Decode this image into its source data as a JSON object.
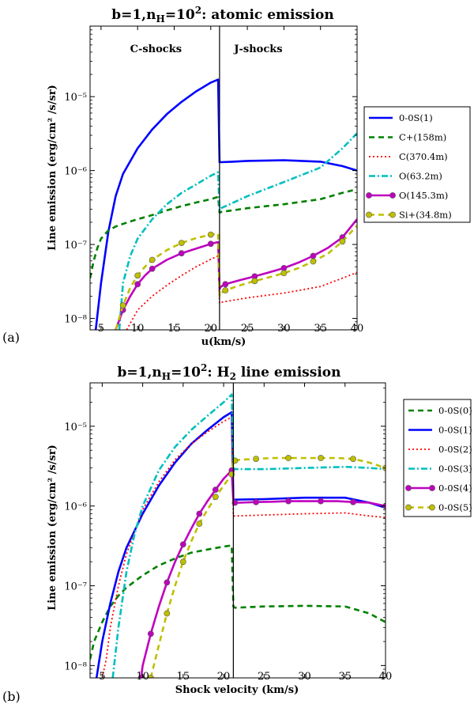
{
  "chart_data": [
    {
      "type": "line",
      "panel_label": "(a)",
      "title_prefix": "b=1,n",
      "title_sub": "H",
      "title_eq": "=10",
      "title_sup": "2",
      "title_suffix": ": atomic emission",
      "xlabel": "u(km/s)",
      "ylabel": "Line emission (erg/cm² /s/sr)",
      "xlim": [
        3.5,
        40
      ],
      "ylim": [
        7e-09,
        9e-05
      ],
      "yscale": "log",
      "x_ticks": [
        5,
        10,
        15,
        20,
        25,
        30,
        35,
        40
      ],
      "x_tick_labels": [
        "5",
        "10",
        "15",
        "20",
        "25",
        "30",
        "35",
        "40"
      ],
      "y_ticks": [
        1e-08,
        1e-07,
        1e-06,
        1e-05
      ],
      "y_tick_labels": [
        "10⁻⁸",
        "10⁻⁷",
        "10⁻⁶",
        "10⁻⁵"
      ],
      "divider_x": 21.2,
      "annotations": [
        {
          "text": "C-shocks",
          "x": 12.5,
          "y": 4e-05
        },
        {
          "text": "J-shocks",
          "x": 26.5,
          "y": 4e-05
        }
      ],
      "legend_loc": "right",
      "series": [
        {
          "name": "0-0S(1)",
          "color": "#0000ff",
          "dash": "solid",
          "marker": false,
          "width": 2.6,
          "x": [
            4.0,
            5,
            6,
            7,
            8,
            10,
            12,
            14,
            16,
            18,
            20,
            21.0,
            21.2,
            21.4,
            23,
            25,
            30,
            35,
            38,
            40
          ],
          "y": [
            4e-09,
            3e-08,
            1.5e-07,
            4.5e-07,
            9e-07,
            2e-06,
            3.6e-06,
            5.8e-06,
            8.5e-06,
            1.18e-05,
            1.55e-05,
            1.7e-05,
            1.3e-06,
            1.3e-06,
            1.32e-06,
            1.35e-06,
            1.38e-06,
            1.32e-06,
            1.15e-06,
            1e-06
          ]
        },
        {
          "name": "C+(158m)",
          "color": "#008000",
          "dash": "7,5",
          "marker": false,
          "width": 2.6,
          "x": [
            3.5,
            4.0,
            4.5,
            5,
            6,
            7,
            8,
            10,
            12,
            14,
            16,
            18,
            20,
            21.0,
            21.2,
            21.4,
            25,
            30,
            35,
            38,
            40
          ],
          "y": [
            3.5e-08,
            6e-08,
            9e-08,
            1.2e-07,
            1.55e-07,
            1.75e-07,
            1.9e-07,
            2.2e-07,
            2.5e-07,
            2.9e-07,
            3.3e-07,
            3.7e-07,
            4.1e-07,
            4.4e-07,
            2.7e-07,
            2.75e-07,
            3.1e-07,
            3.5e-07,
            4.1e-07,
            5e-07,
            5.6e-07
          ]
        },
        {
          "name": "C(370.4m)",
          "color": "#ff0000",
          "dash": "2,3",
          "marker": false,
          "width": 1.8,
          "x": [
            8.5,
            10,
            12,
            14,
            16,
            18,
            20,
            21.0,
            21.2,
            21.4,
            25,
            30,
            35,
            38,
            40
          ],
          "y": [
            7e-09,
            1.3e-08,
            2e-08,
            2.8e-08,
            3.8e-08,
            5e-08,
            6.3e-08,
            7e-08,
            1.6e-08,
            1.65e-08,
            1.9e-08,
            2.2e-08,
            2.7e-08,
            3.5e-08,
            4.2e-08
          ]
        },
        {
          "name": "O(63.2m)",
          "color": "#00bfbf",
          "dash": "8,3,2,3",
          "marker": false,
          "width": 2.6,
          "x": [
            7.5,
            8,
            9,
            10,
            12,
            14,
            16,
            18,
            20,
            21.0,
            21.2,
            21.4,
            25,
            30,
            35,
            38,
            40
          ],
          "y": [
            7e-09,
            3e-08,
            7e-08,
            1.2e-07,
            2.2e-07,
            3.5e-07,
            5e-07,
            6.5e-07,
            8.5e-07,
            9.5e-07,
            2.9e-07,
            3.1e-07,
            4.5e-07,
            7e-07,
            1.1e-06,
            2e-06,
            3.2e-06
          ]
        },
        {
          "name": "O(145.3m)",
          "color": "#bf00bf",
          "dash": "solid",
          "marker": true,
          "width": 2.6,
          "x": [
            6.5,
            7,
            8,
            9,
            10,
            11,
            12,
            14,
            16,
            18,
            20,
            21.0,
            21.2,
            21.4,
            22,
            24,
            26,
            28,
            30,
            32,
            34,
            36,
            38,
            40
          ],
          "y": [
            4e-09,
            7e-09,
            1.3e-08,
            2e-08,
            2.9e-08,
            3.8e-08,
            4.7e-08,
            6.2e-08,
            7.6e-08,
            8.8e-08,
            1.02e-07,
            1.08e-07,
            2.5e-08,
            2.7e-08,
            2.9e-08,
            3.3e-08,
            3.7e-08,
            4.2e-08,
            4.8e-08,
            5.7e-08,
            7e-08,
            9e-08,
            1.25e-07,
            2.2e-07
          ]
        },
        {
          "name": "Si+(34.8m)",
          "color": "#bfbf00",
          "dash": "7,5",
          "marker": true,
          "width": 2.6,
          "x": [
            6.5,
            7,
            8,
            9,
            10,
            11,
            12,
            14,
            16,
            18,
            20,
            21.0,
            21.2,
            21.4,
            22,
            24,
            26,
            28,
            30,
            32,
            34,
            36,
            38,
            40
          ],
          "y": [
            4e-09,
            7e-09,
            1.5e-08,
            2.6e-08,
            3.8e-08,
            5e-08,
            6.2e-08,
            8.4e-08,
            1.05e-07,
            1.22e-07,
            1.36e-07,
            1.4e-07,
            2e-08,
            2.2e-08,
            2.4e-08,
            2.8e-08,
            3.2e-08,
            3.6e-08,
            4.1e-08,
            4.8e-08,
            5.9e-08,
            7.5e-08,
            1.1e-07,
            1.8e-07
          ]
        }
      ]
    },
    {
      "type": "line",
      "panel_label": "(b)",
      "title_prefix": "b=1,n",
      "title_sub": "H",
      "title_eq": "=10",
      "title_sup": "2",
      "title_suffix": ": H",
      "title_sub2": "2",
      "title_suffix2": " line emission",
      "xlabel": "Shock velocity (km/s)",
      "ylabel": "Line emission (erg/cm² /s/sr)",
      "xlim": [
        3.5,
        40
      ],
      "ylim": [
        7e-09,
        3.5e-05
      ],
      "yscale": "log",
      "x_ticks": [
        5,
        10,
        15,
        20,
        25,
        30,
        35,
        40
      ],
      "x_tick_labels": [
        "5",
        "10",
        "15",
        "20",
        "25",
        "30",
        "35",
        "40"
      ],
      "y_ticks": [
        1e-08,
        1e-07,
        1e-06,
        1e-05
      ],
      "y_tick_labels": [
        "10⁻⁸",
        "10⁻⁷",
        "10⁻⁶",
        "10⁻⁵"
      ],
      "divider_x": 21.2,
      "annotations": [],
      "legend_loc": "right",
      "series": [
        {
          "name": "0-0S(0)",
          "color": "#008000",
          "dash": "7,5",
          "marker": false,
          "width": 2.6,
          "x": [
            3.5,
            4,
            5,
            6,
            7,
            8,
            10,
            12,
            14,
            16,
            18,
            20,
            21.0,
            21.2,
            21.4,
            25,
            30,
            35,
            38,
            40
          ],
          "y": [
            1.2e-08,
            2e-08,
            3.5e-08,
            5.5e-08,
            7.5e-08,
            9.5e-08,
            1.35e-07,
            1.8e-07,
            2.2e-07,
            2.6e-07,
            2.85e-07,
            3.1e-07,
            3.2e-07,
            5.5e-08,
            5.3e-08,
            5.5e-08,
            5.6e-08,
            5.5e-08,
            4.5e-08,
            3.5e-08
          ]
        },
        {
          "name": "0-0S(1)",
          "color": "#0000ff",
          "dash": "solid",
          "marker": false,
          "width": 2.6,
          "x": [
            4.3,
            5,
            6,
            7,
            8,
            10,
            12,
            14,
            16,
            18,
            20,
            21.0,
            21.2,
            21.4,
            25,
            30,
            35,
            38,
            40
          ],
          "y": [
            7e-09,
            2e-08,
            6e-08,
            1.5e-07,
            3e-07,
            8e-07,
            1.8e-06,
            3.5e-06,
            6e-06,
            9e-06,
            1.3e-05,
            1.5e-05,
            1.2e-06,
            1.2e-06,
            1.22e-06,
            1.27e-06,
            1.27e-06,
            1.1e-06,
            9.5e-07
          ]
        },
        {
          "name": "0-0S(2)",
          "color": "#ff0000",
          "dash": "2,3",
          "marker": false,
          "width": 1.8,
          "x": [
            5.0,
            5.5,
            6,
            7,
            8,
            10,
            12,
            14,
            16,
            18,
            20,
            21.0,
            21.2,
            21.4,
            25,
            30,
            35,
            38,
            40
          ],
          "y": [
            7e-09,
            1.2e-08,
            3e-08,
            1e-07,
            2.5e-07,
            9e-07,
            2e-06,
            3.8e-06,
            6e-06,
            8.5e-06,
            1.15e-05,
            1.3e-05,
            7.5e-07,
            7.5e-07,
            7.7e-07,
            8e-07,
            8.2e-07,
            7.5e-07,
            7.2e-07
          ]
        },
        {
          "name": "0-0S(3)",
          "color": "#00bfbf",
          "dash": "8,3,2,3",
          "marker": false,
          "width": 2.6,
          "x": [
            6.3,
            7,
            8,
            9,
            10,
            12,
            14,
            16,
            18,
            20,
            21.0,
            21.2,
            21.4,
            25,
            30,
            35,
            38,
            40
          ],
          "y": [
            7e-09,
            3e-08,
            1.5e-07,
            4.5e-07,
            1e-06,
            2.8e-06,
            5.5e-06,
            9e-06,
            1.35e-05,
            2e-05,
            2.5e-05,
            3e-06,
            2.9e-06,
            2.9e-06,
            3e-06,
            3.1e-06,
            3e-06,
            2.9e-06
          ]
        },
        {
          "name": "0-0S(4)",
          "color": "#bf00bf",
          "dash": "solid",
          "marker": true,
          "width": 2.6,
          "x": [
            9.8,
            10,
            11,
            12,
            13,
            14,
            15,
            16,
            17,
            18,
            19,
            20,
            21.0,
            21.2,
            21.4,
            22,
            24,
            26,
            28,
            30,
            32,
            34,
            36,
            38,
            40
          ],
          "y": [
            7e-09,
            1e-08,
            2.5e-08,
            5.5e-08,
            1.1e-07,
            2e-07,
            3.3e-07,
            5.2e-07,
            8e-07,
            1.15e-06,
            1.6e-06,
            2.2e-06,
            2.8e-06,
            1.15e-06,
            1.1e-06,
            1.1e-06,
            1.12e-06,
            1.13e-06,
            1.15e-06,
            1.15e-06,
            1.15e-06,
            1.15e-06,
            1.12e-06,
            1.1e-06,
            1e-06
          ]
        },
        {
          "name": "0-0S(5)",
          "color": "#bfbf00",
          "dash": "7,5",
          "marker": true,
          "width": 2.6,
          "x": [
            11.0,
            12,
            13,
            14,
            15,
            16,
            17,
            18,
            19,
            20,
            21.0,
            21.2,
            21.4,
            22,
            24,
            26,
            28,
            30,
            32,
            34,
            36,
            38,
            40
          ],
          "y": [
            7e-09,
            1.8e-08,
            4.5e-08,
            1e-07,
            2e-07,
            3.6e-07,
            6e-07,
            9e-07,
            1.3e-06,
            1.8e-06,
            2.5e-06,
            3.8e-06,
            3.7e-06,
            3.8e-06,
            3.9e-06,
            4e-06,
            4e-06,
            4e-06,
            4e-06,
            4e-06,
            3.9e-06,
            3.5e-06,
            3e-06
          ]
        }
      ]
    }
  ]
}
